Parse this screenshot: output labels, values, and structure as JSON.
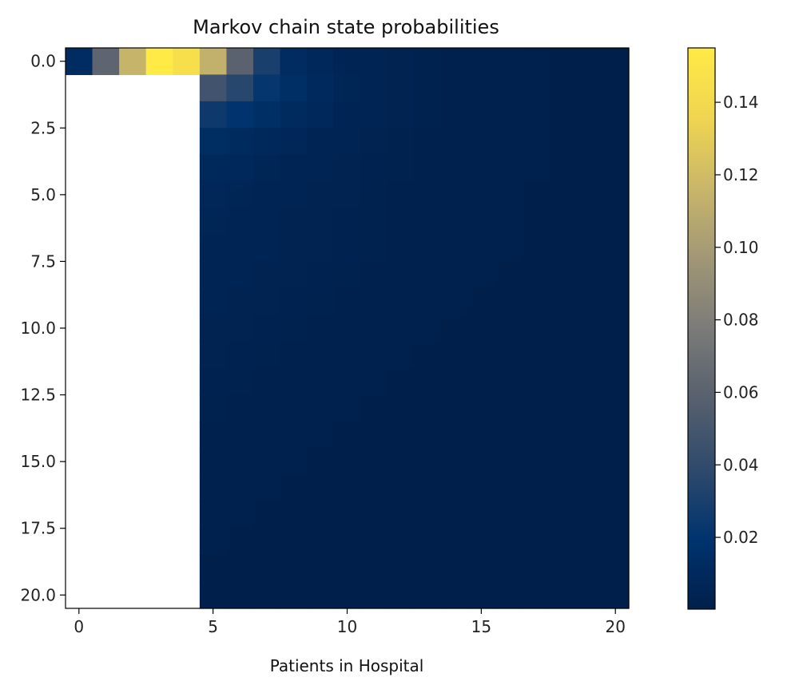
{
  "chart_data": {
    "type": "heatmap",
    "title": "Markov chain state probabilities",
    "xlabel": "Patients in Hospital",
    "ylabel": "",
    "colormap": "cividis",
    "x_range": [
      -0.5,
      20.5
    ],
    "y_range": [
      -0.5,
      20.5
    ],
    "y_inverted": true,
    "grid": false,
    "x_ticks": [
      0,
      5,
      10,
      15,
      20
    ],
    "x_tick_labels": [
      "0",
      "5",
      "10",
      "15",
      "20"
    ],
    "y_ticks": [
      0,
      2.5,
      5,
      7.5,
      10,
      12.5,
      15,
      17.5,
      20
    ],
    "y_tick_labels": [
      "0.0",
      "2.5",
      "5.0",
      "7.5",
      "10.0",
      "12.5",
      "15.0",
      "17.5",
      "20.0"
    ],
    "colorbar": {
      "min": 0.0002,
      "max": 0.155,
      "ticks": [
        0.02,
        0.04,
        0.06,
        0.08,
        0.1,
        0.12,
        0.14
      ],
      "tick_labels": [
        "0.02",
        "0.04",
        "0.06",
        "0.08",
        "0.10",
        "0.12",
        "0.14"
      ]
    },
    "masked_region": {
      "rows": [
        1,
        20
      ],
      "cols": [
        0,
        4
      ]
    },
    "values": [
      [
        0.012,
        0.062,
        0.115,
        0.155,
        0.145,
        0.113,
        0.06,
        0.03,
        0.012,
        0.008,
        0.005,
        0.004,
        0.003,
        0.002,
        0.0015,
        0.001,
        0.0008,
        0.0006,
        0.0004,
        0.0003,
        0.0002
      ],
      [
        null,
        null,
        null,
        null,
        null,
        0.048,
        0.036,
        0.022,
        0.015,
        0.01,
        0.006,
        0.004,
        0.003,
        0.002,
        0.0015,
        0.001,
        0.0008,
        0.0006,
        0.0004,
        0.0003,
        0.0002
      ],
      [
        null,
        null,
        null,
        null,
        null,
        0.025,
        0.02,
        0.015,
        0.011,
        0.008,
        0.005,
        0.004,
        0.003,
        0.002,
        0.0015,
        0.001,
        0.0008,
        0.0006,
        0.0004,
        0.0003,
        0.0002
      ],
      [
        null,
        null,
        null,
        null,
        null,
        0.013,
        0.011,
        0.009,
        0.007,
        0.005,
        0.004,
        0.003,
        0.002,
        0.0015,
        0.001,
        0.0008,
        0.0006,
        0.0005,
        0.0004,
        0.0003,
        0.0002
      ],
      [
        null,
        null,
        null,
        null,
        null,
        0.009,
        0.008,
        0.006,
        0.005,
        0.004,
        0.003,
        0.0025,
        0.002,
        0.0015,
        0.001,
        0.0008,
        0.0006,
        0.0005,
        0.0004,
        0.0003,
        0.0002
      ],
      [
        null,
        null,
        null,
        null,
        null,
        0.007,
        0.006,
        0.005,
        0.004,
        0.0035,
        0.003,
        0.002,
        0.0015,
        0.001,
        0.0008,
        0.0006,
        0.0005,
        0.0004,
        0.0003,
        0.0002,
        0.0002
      ],
      [
        null,
        null,
        null,
        null,
        null,
        0.006,
        0.005,
        0.004,
        0.0035,
        0.003,
        0.0025,
        0.002,
        0.0015,
        0.001,
        0.0008,
        0.0006,
        0.0005,
        0.0004,
        0.0003,
        0.0002,
        0.0002
      ],
      [
        null,
        null,
        null,
        null,
        null,
        0.005,
        0.0045,
        0.004,
        0.0035,
        0.003,
        0.0025,
        0.002,
        0.0015,
        0.001,
        0.0008,
        0.0006,
        0.0005,
        0.0004,
        0.0003,
        0.0002,
        0.0002
      ],
      [
        null,
        null,
        null,
        null,
        null,
        0.0045,
        0.004,
        0.0035,
        0.003,
        0.0025,
        0.002,
        0.0015,
        0.001,
        0.0008,
        0.0006,
        0.0005,
        0.0004,
        0.0003,
        0.0002,
        0.0002,
        0.0002
      ],
      [
        null,
        null,
        null,
        null,
        null,
        0.004,
        0.0035,
        0.003,
        0.0025,
        0.002,
        0.0015,
        0.001,
        0.0008,
        0.0006,
        0.0005,
        0.0004,
        0.0003,
        0.0002,
        0.0002,
        0.0002,
        0.0002
      ],
      [
        null,
        null,
        null,
        null,
        null,
        0.0035,
        0.003,
        0.0025,
        0.002,
        0.0015,
        0.001,
        0.0008,
        0.0006,
        0.0005,
        0.0004,
        0.0003,
        0.0002,
        0.0002,
        0.0002,
        0.0002,
        0.0002
      ],
      [
        null,
        null,
        null,
        null,
        null,
        0.003,
        0.0025,
        0.002,
        0.0015,
        0.001,
        0.0008,
        0.0006,
        0.0005,
        0.0004,
        0.0003,
        0.0002,
        0.0002,
        0.0002,
        0.0002,
        0.0002,
        0.0002
      ],
      [
        null,
        null,
        null,
        null,
        null,
        0.0025,
        0.002,
        0.0015,
        0.001,
        0.0008,
        0.0006,
        0.0005,
        0.0004,
        0.0003,
        0.0002,
        0.0002,
        0.0002,
        0.0002,
        0.0002,
        0.0002,
        0.0002
      ],
      [
        null,
        null,
        null,
        null,
        null,
        0.002,
        0.0015,
        0.001,
        0.0008,
        0.0006,
        0.0005,
        0.0004,
        0.0003,
        0.0002,
        0.0002,
        0.0002,
        0.0002,
        0.0002,
        0.0002,
        0.0002,
        0.0002
      ],
      [
        null,
        null,
        null,
        null,
        null,
        0.0015,
        0.001,
        0.0008,
        0.0006,
        0.0005,
        0.0004,
        0.0003,
        0.0002,
        0.0002,
        0.0002,
        0.0002,
        0.0002,
        0.0002,
        0.0002,
        0.0002,
        0.0002
      ],
      [
        null,
        null,
        null,
        null,
        null,
        0.001,
        0.0008,
        0.0006,
        0.0005,
        0.0004,
        0.0003,
        0.0002,
        0.0002,
        0.0002,
        0.0002,
        0.0002,
        0.0002,
        0.0002,
        0.0002,
        0.0002,
        0.0002
      ],
      [
        null,
        null,
        null,
        null,
        null,
        0.0008,
        0.0006,
        0.0005,
        0.0004,
        0.0003,
        0.0002,
        0.0002,
        0.0002,
        0.0002,
        0.0002,
        0.0002,
        0.0002,
        0.0002,
        0.0002,
        0.0002,
        0.0002
      ],
      [
        null,
        null,
        null,
        null,
        null,
        0.0006,
        0.0005,
        0.0004,
        0.0003,
        0.0002,
        0.0002,
        0.0002,
        0.0002,
        0.0002,
        0.0002,
        0.0002,
        0.0002,
        0.0002,
        0.0002,
        0.0002,
        0.0002
      ],
      [
        null,
        null,
        null,
        null,
        null,
        0.0005,
        0.0004,
        0.0003,
        0.0002,
        0.0002,
        0.0002,
        0.0002,
        0.0002,
        0.0002,
        0.0002,
        0.0002,
        0.0002,
        0.0002,
        0.0002,
        0.0002,
        0.0002
      ],
      [
        null,
        null,
        null,
        null,
        null,
        0.0004,
        0.0003,
        0.0002,
        0.0002,
        0.0002,
        0.0002,
        0.0002,
        0.0002,
        0.0002,
        0.0002,
        0.0002,
        0.0002,
        0.0002,
        0.0002,
        0.0002,
        0.0002
      ],
      [
        null,
        null,
        null,
        null,
        null,
        0.0003,
        0.0002,
        0.0002,
        0.0002,
        0.0002,
        0.0002,
        0.0002,
        0.0002,
        0.0002,
        0.0002,
        0.0002,
        0.0002,
        0.0002,
        0.0002,
        0.0002,
        0.0002
      ]
    ]
  }
}
